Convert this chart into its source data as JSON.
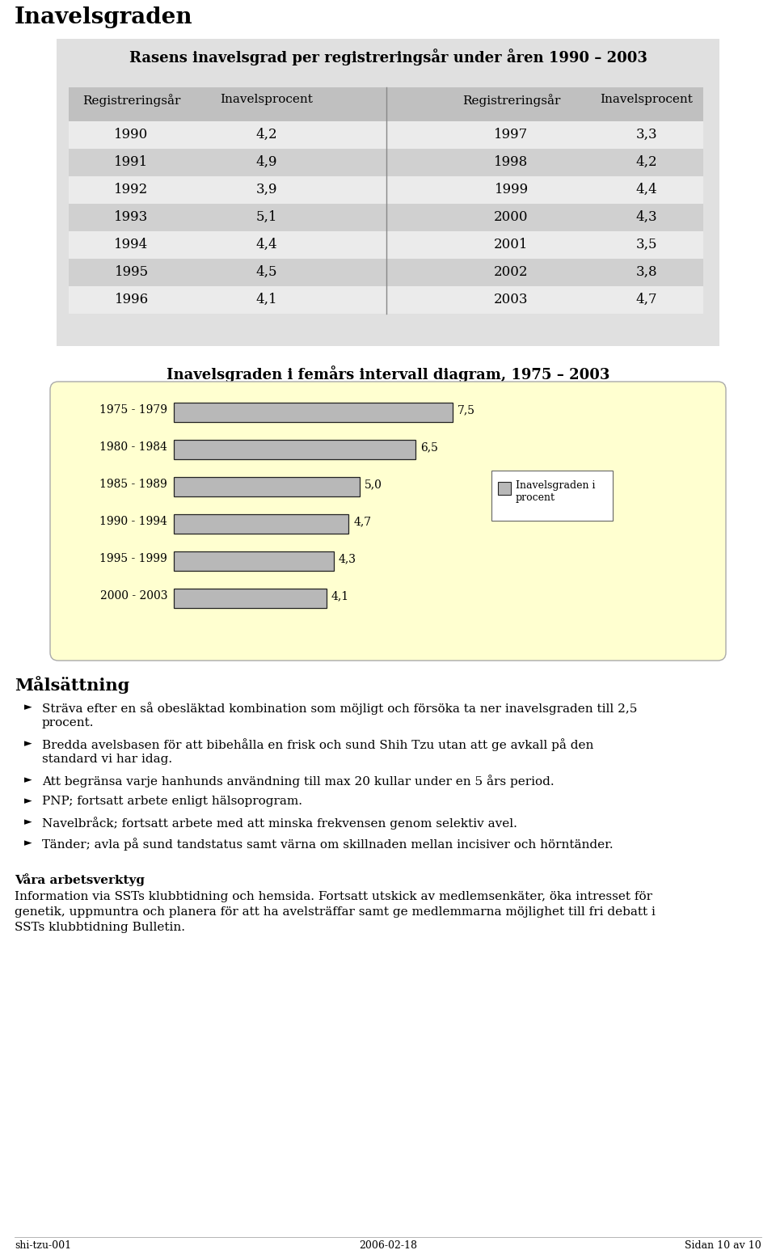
{
  "page_title": "Inavelsgraden",
  "table_title": "Rasens inavelsgrad per registreringsår under åren 1990 – 2003",
  "table_headers": [
    "Registreringsår",
    "Inavelsprocent",
    "Registreringsår",
    "Inavelsprocent"
  ],
  "table_left": [
    [
      "1990",
      "4,2"
    ],
    [
      "1991",
      "4,9"
    ],
    [
      "1992",
      "3,9"
    ],
    [
      "1993",
      "5,1"
    ],
    [
      "1994",
      "4,4"
    ],
    [
      "1995",
      "4,5"
    ],
    [
      "1996",
      "4,1"
    ]
  ],
  "table_right": [
    [
      "1997",
      "3,3"
    ],
    [
      "1998",
      "4,2"
    ],
    [
      "1999",
      "4,4"
    ],
    [
      "2000",
      "4,3"
    ],
    [
      "2001",
      "3,5"
    ],
    [
      "2002",
      "3,8"
    ],
    [
      "2003",
      "4,7"
    ]
  ],
  "chart_title": "Inavelsgraden i femårs intervall diagram, 1975 – 2003",
  "bar_categories": [
    "1975 - 1979",
    "1980 - 1984",
    "1985 - 1989",
    "1990 - 1994",
    "1995 - 1999",
    "2000 - 2003"
  ],
  "bar_values": [
    7.5,
    6.5,
    5.0,
    4.7,
    4.3,
    4.1
  ],
  "bar_color": "#b8b8b8",
  "bar_edgecolor": "#222222",
  "legend_label_line1": "Inavelsgraden i",
  "legend_label_line2": "procent",
  "chart_bg_color": "#ffffd0",
  "malsattning_title": "Målsättning",
  "malsattning_bullets": [
    "Sträva efter en så obesläktad kombination som möjligt och försöka ta ner inavelsgraden till 2,5\nprocent.",
    "Bredda avelsbasen för att bibehålla en frisk och sund Shih Tzu utan att ge avkall på den\nstandard vi har idag.",
    "Att begränsa varje hanhunds användning till max 20 kullar under en 5 års period.",
    "PNP; fortsatt arbete enligt hälsoprogram.",
    "Navelbråck; fortsatt arbete med att minska frekvensen genom selektiv avel.",
    "Tänder; avla på sund tandstatus samt värna om skillnaden mellan incisiver och hörntänder."
  ],
  "vara_title": "Våra arbetsverktyg",
  "vara_lines": [
    "Information via SSTs klubbtidning och hemsida. Fortsatt utskick av medlemsenkäter, öka intresset för",
    "genetik, uppmuntra och planera för att ha avelsträffar samt ge medlemmarna möjlighet till fri debatt i",
    "SSTs klubbtidning Bulletin."
  ],
  "footer_left": "shi-tzu-001",
  "footer_center": "2006-02-18",
  "footer_right": "Sidan 10 av 10",
  "bg_color": "#ffffff",
  "table_outer_bg": "#e0e0e0",
  "table_header_bg": "#c0c0c0",
  "table_alt_row_bg": "#d0d0d0",
  "table_white_row_bg": "#ebebeb"
}
